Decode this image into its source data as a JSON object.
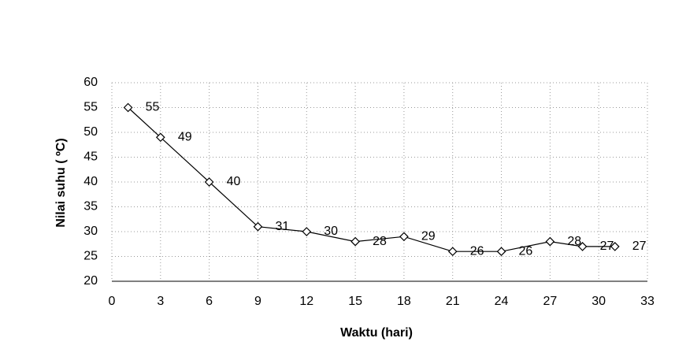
{
  "chart_data": {
    "type": "line",
    "x": [
      1,
      3,
      6,
      9,
      12,
      15,
      18,
      21,
      24,
      27,
      29,
      31
    ],
    "series": [
      {
        "name": "Nilai suhu",
        "color": "#000000",
        "values": [
          55,
          49,
          40,
          31,
          30,
          28,
          29,
          26,
          26,
          28,
          27,
          27
        ]
      }
    ],
    "x_label": "Waktu (hari)",
    "y_label": "Nilai suhu ( ºC)",
    "xlim": [
      0,
      33
    ],
    "xticks": [
      0,
      3,
      6,
      9,
      12,
      15,
      18,
      21,
      24,
      27,
      30,
      33
    ],
    "ylim": [
      20,
      60
    ],
    "yticks": [
      20,
      25,
      30,
      35,
      40,
      45,
      50,
      55,
      60
    ],
    "grid": true
  }
}
